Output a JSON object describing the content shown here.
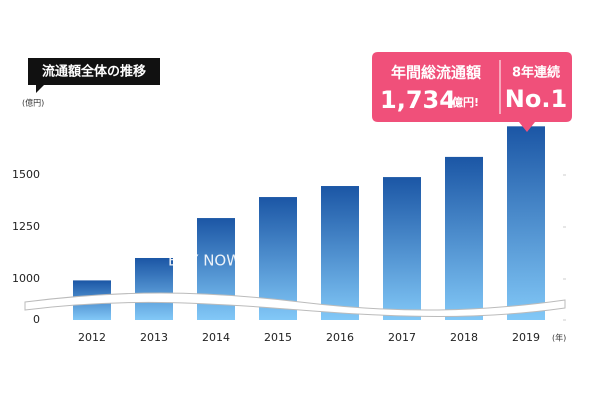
{
  "chart_data": {
    "type": "bar",
    "title": "流通額全体の推移",
    "y_unit": "(億円)",
    "x_unit": "(年)",
    "categories": [
      "2012",
      "2013",
      "2014",
      "2015",
      "2016",
      "2017",
      "2018",
      "2019"
    ],
    "values": [
      966,
      1101,
      1293,
      1394,
      1447,
      1490,
      1587,
      1734
    ],
    "ylim": [
      0,
      1750
    ],
    "yticks": [
      0,
      1000,
      1250,
      1500
    ],
    "axis_break": [
      0,
      1000
    ],
    "watermark": "BUY NOW",
    "callout": {
      "label": "年間総流通額",
      "amount": "1,734",
      "unit": "億円!",
      "badge_label": "8年連続",
      "badge": "No.1"
    }
  }
}
